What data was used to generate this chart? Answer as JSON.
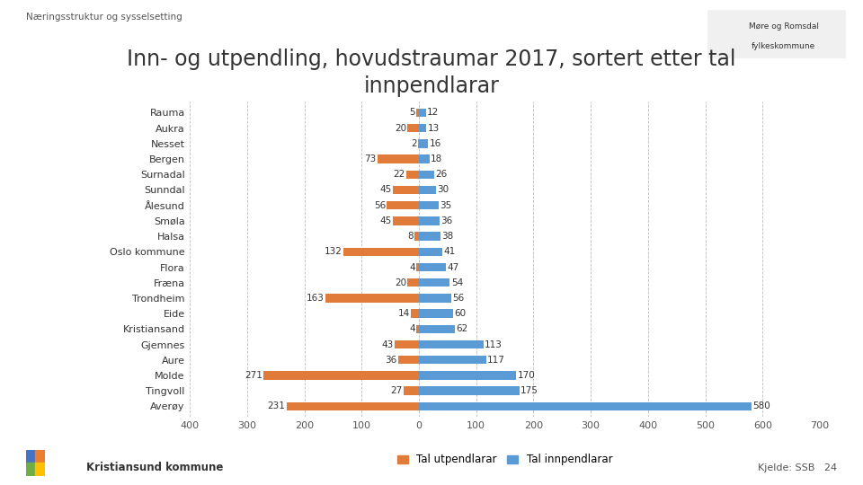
{
  "title": "Inn- og utpendling, hovudstraumar 2017, sortert etter tal\ninnpendlarar",
  "header": "Næringsstruktur og sysselsetting",
  "footer_left": "Kristiansund kommune",
  "footer_right": "Kjelde: SSB   24",
  "categories": [
    "Averøy",
    "Tingvoll",
    "Molde",
    "Aure",
    "Gjemnes",
    "Kristiansand",
    "Eide",
    "Trondheim",
    "Fræna",
    "Flora",
    "Oslo kommune",
    "Halsa",
    "Smøla",
    "Ålesund",
    "Sunndal",
    "Surnadal",
    "Bergen",
    "Nesset",
    "Aukra",
    "Rauma"
  ],
  "utpendlarar": [
    231,
    27,
    271,
    36,
    43,
    4,
    14,
    163,
    20,
    4,
    132,
    8,
    45,
    56,
    45,
    22,
    73,
    2,
    20,
    5
  ],
  "innpendlarar": [
    580,
    175,
    170,
    117,
    113,
    62,
    60,
    56,
    54,
    47,
    41,
    38,
    36,
    35,
    30,
    26,
    18,
    16,
    13,
    12
  ],
  "color_ut": "#E07B39",
  "color_inn": "#5B9BD5",
  "background_color": "#FFFFFF",
  "xlim_left": -400,
  "xlim_right": 700,
  "xticks": [
    -400,
    -300,
    -200,
    -100,
    0,
    100,
    200,
    300,
    400,
    500,
    600,
    700
  ],
  "xtick_labels": [
    "400",
    "300",
    "200",
    "100",
    "0",
    "100",
    "200",
    "300",
    "400",
    "500",
    "600",
    "700"
  ],
  "legend_ut": "Tal utpendlarar",
  "legend_inn": "Tal innpendlarar",
  "bar_height": 0.55,
  "title_fontsize": 17,
  "label_fontsize": 8,
  "tick_fontsize": 8,
  "legend_fontsize": 8.5,
  "value_fontsize": 7.5
}
